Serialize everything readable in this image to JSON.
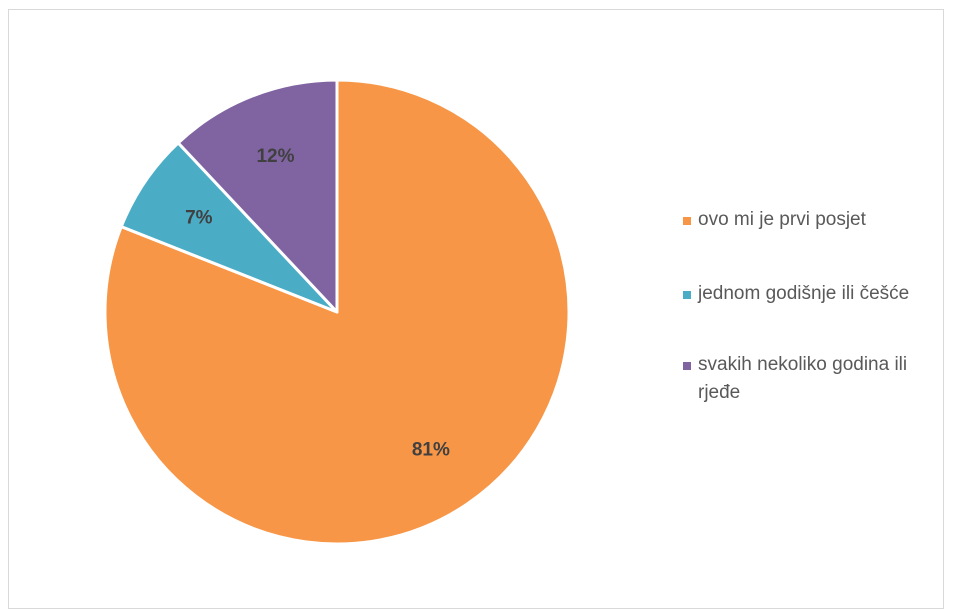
{
  "chart_data": {
    "type": "pie",
    "categories": [
      "ovo mi je prvi posjet",
      "jednom godišnje ili češće",
      "svakih nekoliko godina ili rjeđe"
    ],
    "values": [
      81,
      7,
      12
    ],
    "data_labels": [
      "81%",
      "7%",
      "12%"
    ],
    "colors": [
      "#f79646",
      "#4bacc6",
      "#8064a2"
    ],
    "start": "top",
    "direction": "clockwise",
    "legend_position": "right"
  }
}
